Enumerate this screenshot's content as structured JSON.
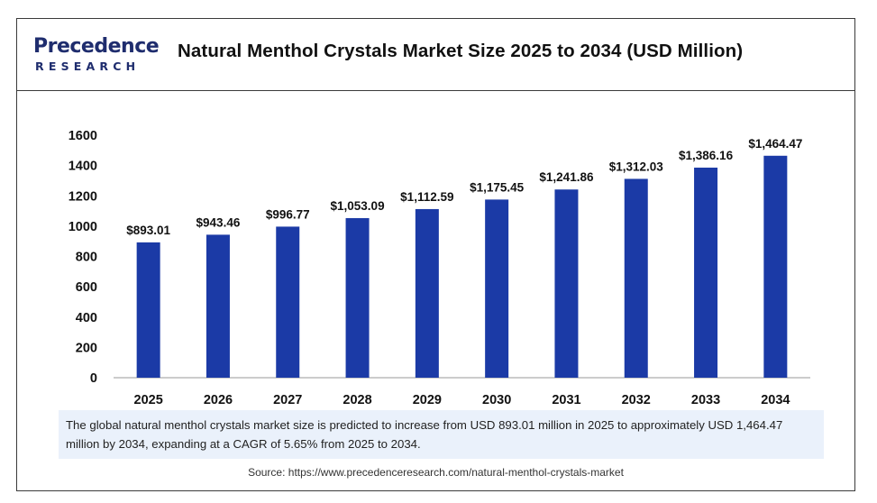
{
  "header": {
    "logo_top": "Precedence",
    "logo_bottom": "RESEARCH",
    "title": "Natural Menthol Crystals Market Size 2025 to 2034 (USD Million)"
  },
  "caption": "The global natural menthol crystals market size is predicted to increase from USD 893.01 million in 2025 to approximately USD 1,464.47 million by 2034, expanding at a CAGR of 5.65% from 2025 to 2034.",
  "source": "Source: https://www.precedenceresearch.com/natural-menthol-crystals-market",
  "colors": {
    "bar": "#1b3aa6",
    "brand": "#1f2d6e",
    "caption_bg": "#eaf1fb"
  },
  "chart_data": {
    "type": "bar",
    "categories": [
      "2025",
      "2026",
      "2027",
      "2028",
      "2029",
      "2030",
      "2031",
      "2032",
      "2033",
      "2034"
    ],
    "values": [
      893.01,
      943.46,
      996.77,
      1053.09,
      1112.59,
      1175.45,
      1241.86,
      1312.03,
      1386.16,
      1464.47
    ],
    "data_labels": [
      "$893.01",
      "$943.46",
      "$996.77",
      "$1,053.09",
      "$1,112.59",
      "$1,175.45",
      "$1,241.86",
      "$1,312.03",
      "$1,386.16",
      "$1,464.47"
    ],
    "yticks": [
      0,
      200,
      400,
      600,
      800,
      1000,
      1200,
      1400,
      1600
    ],
    "ylim": [
      0,
      1600
    ],
    "xlabel": "",
    "ylabel": "",
    "grid": false,
    "legend": "none"
  }
}
